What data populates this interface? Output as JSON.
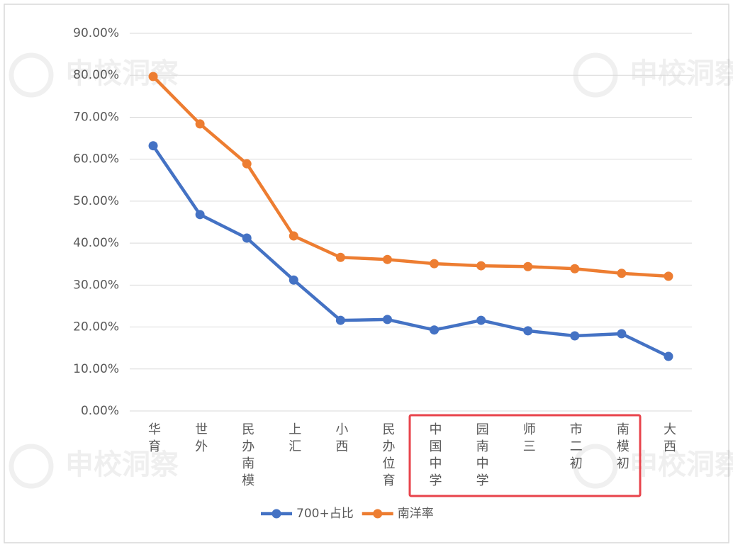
{
  "chart_data": {
    "type": "line",
    "categories": [
      "华育",
      "世外",
      "民办南模",
      "上汇",
      "小西",
      "民办位育",
      "中国中学",
      "园南中学",
      "师三",
      "市二初",
      "南模初",
      "大西"
    ],
    "series": [
      {
        "name": "700+占比",
        "color": "#4472c4",
        "values": [
          63.2,
          46.8,
          41.2,
          31.2,
          21.6,
          21.8,
          19.3,
          21.6,
          19.1,
          17.9,
          18.4,
          13.0
        ]
      },
      {
        "name": "南洋率",
        "color": "#ed7d31",
        "values": [
          79.7,
          68.4,
          58.9,
          41.7,
          36.6,
          36.1,
          35.1,
          34.6,
          34.4,
          33.9,
          32.8,
          32.1
        ]
      }
    ],
    "ylim": [
      0,
      90
    ],
    "yticks": [
      {
        "value": 0,
        "label": "0.00%"
      },
      {
        "value": 10,
        "label": "10.00%"
      },
      {
        "value": 20,
        "label": "20.00%"
      },
      {
        "value": 30,
        "label": "30.00%"
      },
      {
        "value": 40,
        "label": "40.00%"
      },
      {
        "value": 50,
        "label": "50.00%"
      },
      {
        "value": 60,
        "label": "60.00%"
      },
      {
        "value": 70,
        "label": "70.00%"
      },
      {
        "value": 80,
        "label": "80.00%"
      },
      {
        "value": 90,
        "label": "90.00%"
      }
    ],
    "grid": true,
    "legend": "bottom",
    "watermark": "申校洞察"
  }
}
